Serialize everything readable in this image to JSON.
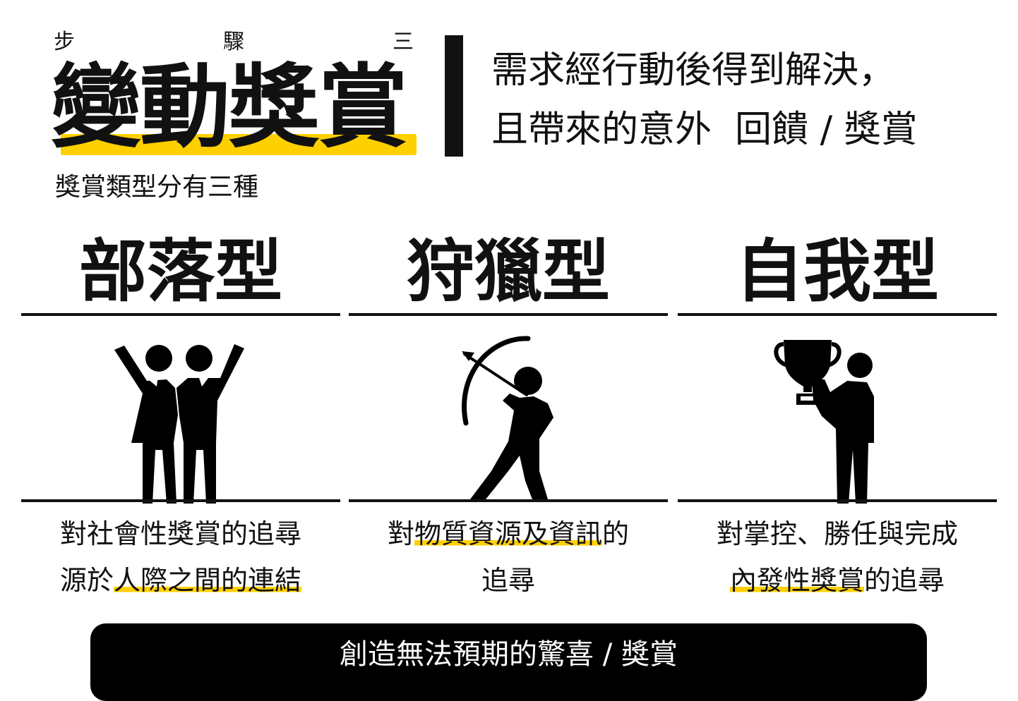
{
  "header": {
    "step_chars": [
      "步",
      "驟",
      "三"
    ],
    "title": "變動獎賞",
    "subtitle": "獎賞類型分有三種",
    "definition_line1": "需求經行動後得到解決，",
    "definition_line2": "且帶來的意外  回饋 / 獎賞"
  },
  "types": [
    {
      "title": "部落型",
      "desc_line1": "對社會性獎賞的追尋",
      "desc_line2_plain": "源於",
      "desc_line2_highlight": "人際之間的連結",
      "icon": "two-people-cheering-icon"
    },
    {
      "title": "狩獵型",
      "desc_line1_plain_a": "對",
      "desc_line1_highlight": "物質資源及資訊",
      "desc_line1_plain_b": "的",
      "desc_line2": "追尋",
      "icon": "archer-icon"
    },
    {
      "title": "自我型",
      "desc_line1": "對掌控、勝任與完成",
      "desc_line2_highlight": "內發性獎賞",
      "desc_line2_plain": "的追尋",
      "icon": "person-holding-trophy-icon"
    }
  ],
  "footer": {
    "text": "創造無法預期的驚喜 / 獎賞"
  },
  "colors": {
    "accent": "#FFD000",
    "ink": "#111111",
    "footer_bg": "#000000",
    "footer_text": "#ffffff"
  }
}
